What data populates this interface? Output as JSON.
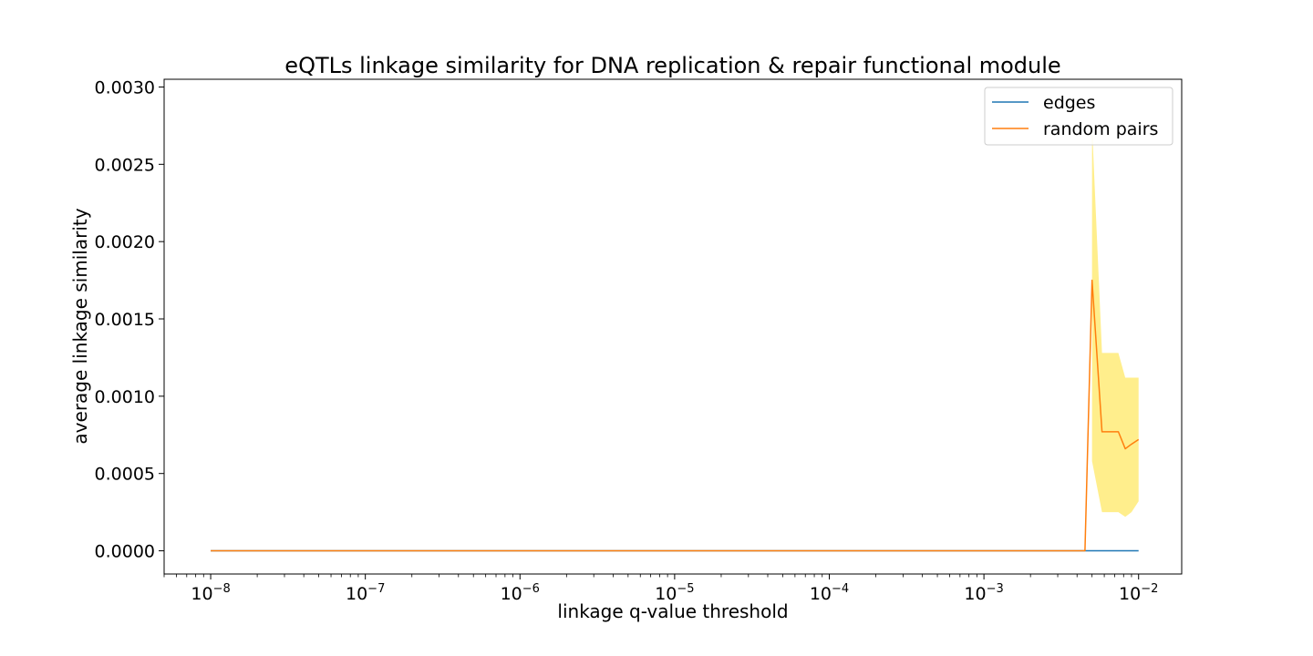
{
  "chart_data": {
    "type": "line",
    "title": "eQTLs linkage similarity for DNA replication & repair functional module",
    "xlabel": "linkage q-value threshold",
    "ylabel": "average linkage similarity",
    "xscale": "log",
    "xlim": [
      5e-09,
      0.019
    ],
    "ylim": [
      -0.00015,
      0.00305
    ],
    "x_ticks": [
      1e-08,
      1e-07,
      1e-06,
      1e-05,
      0.0001,
      0.001,
      0.01
    ],
    "x_tick_labels": [
      {
        "base": "10",
        "exp": "−8"
      },
      {
        "base": "10",
        "exp": "−7"
      },
      {
        "base": "10",
        "exp": "−6"
      },
      {
        "base": "10",
        "exp": "−5"
      },
      {
        "base": "10",
        "exp": "−4"
      },
      {
        "base": "10",
        "exp": "−3"
      },
      {
        "base": "10",
        "exp": "−2"
      }
    ],
    "y_ticks": [
      0,
      0.0005,
      0.001,
      0.0015,
      0.002,
      0.0025,
      0.003
    ],
    "y_tick_labels": [
      "0.0000",
      "0.0005",
      "0.0010",
      "0.0015",
      "0.0020",
      "0.0025",
      "0.0030"
    ],
    "grid": false,
    "legend_position": "top-right",
    "series": [
      {
        "name": "edges",
        "color": "#1f77b4",
        "x": [
          1e-08,
          0.0045,
          0.005,
          0.0058,
          0.0066,
          0.0074,
          0.0082,
          0.009,
          0.01
        ],
        "values": [
          0,
          0,
          0,
          0,
          0,
          0,
          0,
          0,
          0
        ]
      },
      {
        "name": "random pairs",
        "color": "#ff7f0e",
        "x": [
          1e-08,
          0.0045,
          0.005,
          0.0058,
          0.0066,
          0.0074,
          0.0082,
          0.009,
          0.01
        ],
        "values": [
          0,
          0,
          0.00175,
          0.00077,
          0.00077,
          0.00077,
          0.00066,
          0.00069,
          0.00072
        ],
        "band_color": "#ffe866",
        "band_lower": [
          null,
          null,
          0.00058,
          0.00025,
          0.00025,
          0.00025,
          0.00022,
          0.00025,
          0.00032
        ],
        "band_upper": [
          null,
          null,
          0.00275,
          0.00128,
          0.00128,
          0.00128,
          0.00112,
          0.00112,
          0.00112
        ]
      }
    ]
  }
}
